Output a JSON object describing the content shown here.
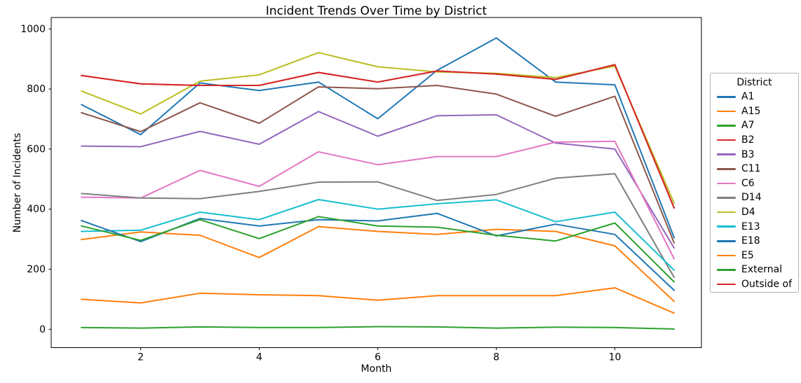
{
  "chart_data": {
    "type": "line",
    "title": "Incident Trends Over Time by District",
    "xlabel": "Month",
    "ylabel": "Number of Incidents",
    "legend_title": "District",
    "legend_position": "right-outside",
    "grid": false,
    "x": [
      1,
      2,
      3,
      4,
      5,
      6,
      7,
      8,
      9,
      10,
      11
    ],
    "xticks": [
      2,
      4,
      6,
      8,
      10
    ],
    "yticks": [
      0,
      200,
      400,
      600,
      800,
      1000
    ],
    "xlim": [
      0.49,
      11.46
    ],
    "ylim": [
      -61,
      1038
    ],
    "series": [
      {
        "name": "A1",
        "color": "#1f77b4",
        "values": [
          748,
          648,
          820,
          795,
          823,
          701,
          862,
          970,
          823,
          814,
          305
        ]
      },
      {
        "name": "A15",
        "color": "#ff7f0e",
        "values": [
          299,
          324,
          313,
          239,
          342,
          326,
          316,
          333,
          326,
          278,
          93
        ]
      },
      {
        "name": "A7",
        "color": "#2ca02c",
        "values": [
          6,
          4,
          8,
          6,
          6,
          9,
          8,
          4,
          7,
          6,
          1
        ]
      },
      {
        "name": "B2",
        "color": "#d62728",
        "values": [
          845,
          817,
          812,
          812,
          855,
          823,
          860,
          850,
          832,
          881,
          404
        ]
      },
      {
        "name": "B3",
        "color": "#9467bd",
        "values": [
          610,
          608,
          659,
          616,
          725,
          643,
          711,
          714,
          620,
          600,
          271
        ]
      },
      {
        "name": "C11",
        "color": "#8c564b",
        "values": [
          721,
          658,
          754,
          686,
          807,
          801,
          812,
          783,
          709,
          776,
          288
        ]
      },
      {
        "name": "C6",
        "color": "#e377c2",
        "values": [
          440,
          437,
          529,
          476,
          591,
          548,
          575,
          575,
          623,
          626,
          235
        ]
      },
      {
        "name": "D14",
        "color": "#7f7f7f",
        "values": [
          452,
          437,
          435,
          459,
          490,
          491,
          429,
          449,
          503,
          518,
          173
        ]
      },
      {
        "name": "D4",
        "color": "#bcbd22",
        "values": [
          793,
          717,
          826,
          847,
          921,
          874,
          857,
          852,
          838,
          876,
          420
        ]
      },
      {
        "name": "E13",
        "color": "#17becf",
        "values": [
          326,
          330,
          390,
          365,
          432,
          400,
          418,
          431,
          358,
          390,
          197
        ]
      },
      {
        "name": "E18",
        "color": "#1f77b4",
        "values": [
          362,
          292,
          369,
          344,
          365,
          361,
          386,
          311,
          350,
          316,
          130
        ]
      },
      {
        "name": "E5",
        "color": "#ff7f0e",
        "values": [
          100,
          88,
          120,
          115,
          112,
          97,
          112,
          112,
          112,
          138,
          54
        ]
      },
      {
        "name": "External",
        "color": "#2ca02c",
        "values": [
          344,
          296,
          365,
          302,
          375,
          344,
          340,
          313,
          294,
          354,
          158
        ]
      },
      {
        "name": "Outside of",
        "color": "#d62728",
        "values": [
          845,
          817,
          812,
          812,
          855,
          823,
          860,
          850,
          832,
          881,
          404
        ]
      }
    ]
  }
}
